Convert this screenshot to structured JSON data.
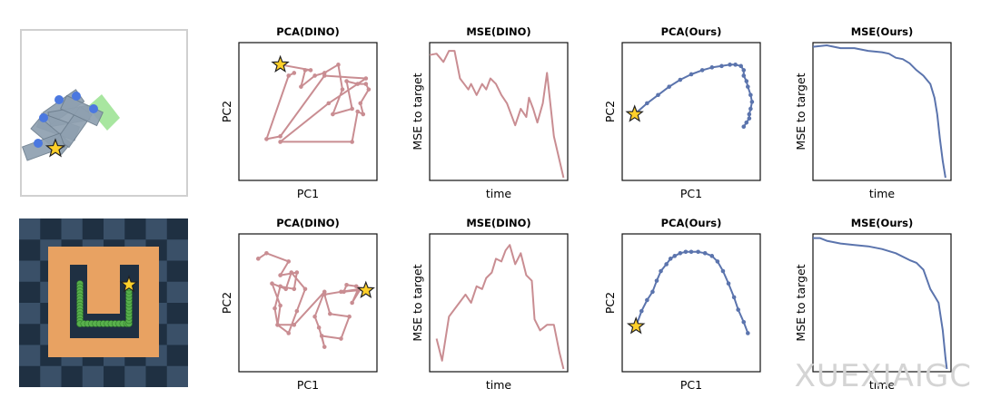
{
  "colors": {
    "dino": "#c98d92",
    "ours": "#5b74ad",
    "star_fill": "#ffd02a",
    "star_stroke": "#222222",
    "env_border": "#d0d0d0",
    "push_block": "#8fa0b0",
    "push_goal": "#a8e6a0",
    "push_agent": "#4b78e0",
    "maze_dark": "#1f3042",
    "maze_light": "#3a5068",
    "maze_orange": "#e8a262",
    "snake_green": "#58b04c"
  },
  "watermark": "XUEXIAIGC",
  "chart_data": [
    {
      "row": 0,
      "type": "line",
      "title": "PCA(DINO)",
      "xlabel": "PC1",
      "ylabel": "PC2",
      "series": "dino",
      "markers": true,
      "star": true,
      "x": [
        0.3,
        0.52,
        0.48,
        0.45,
        0.55,
        0.62,
        0.72,
        0.75,
        0.68,
        0.82,
        0.78,
        0.86,
        0.92,
        0.94,
        0.88,
        0.9,
        0.86,
        0.82,
        0.3,
        0.65,
        0.92,
        0.62,
        0.3,
        0.2,
        0.36,
        0.4
      ],
      "y": [
        0.84,
        0.8,
        0.8,
        0.68,
        0.76,
        0.78,
        0.84,
        0.66,
        0.48,
        0.52,
        0.72,
        0.7,
        0.7,
        0.66,
        0.56,
        0.48,
        0.5,
        0.28,
        0.28,
        0.56,
        0.74,
        0.76,
        0.32,
        0.3,
        0.76,
        0.78
      ],
      "xlim": [
        0,
        1
      ],
      "ylim": [
        0,
        1
      ]
    },
    {
      "row": 0,
      "type": "line",
      "title": "MSE(DINO)",
      "xlabel": "time",
      "ylabel": "MSE to target",
      "series": "dino",
      "markers": false,
      "x": [
        0.0,
        0.05,
        0.1,
        0.14,
        0.18,
        0.22,
        0.28,
        0.3,
        0.34,
        0.38,
        0.41,
        0.44,
        0.48,
        0.52,
        0.56,
        0.62,
        0.66,
        0.7,
        0.72,
        0.75,
        0.78,
        0.82,
        0.85,
        0.9,
        0.97
      ],
      "y": [
        0.91,
        0.92,
        0.86,
        0.94,
        0.94,
        0.74,
        0.66,
        0.7,
        0.62,
        0.7,
        0.66,
        0.74,
        0.7,
        0.62,
        0.56,
        0.4,
        0.52,
        0.46,
        0.6,
        0.52,
        0.42,
        0.56,
        0.78,
        0.32,
        0.02
      ],
      "xlim": [
        0,
        1
      ],
      "ylim": [
        0,
        1
      ]
    },
    {
      "row": 0,
      "type": "line",
      "title": "PCA(Ours)",
      "xlabel": "PC1",
      "ylabel": "PC2",
      "series": "ours",
      "markers": true,
      "star": true,
      "x": [
        0.09,
        0.18,
        0.26,
        0.34,
        0.42,
        0.5,
        0.58,
        0.65,
        0.72,
        0.78,
        0.82,
        0.86,
        0.88,
        0.88,
        0.9,
        0.91,
        0.93,
        0.94,
        0.93,
        0.92,
        0.92,
        0.9,
        0.88
      ],
      "y": [
        0.48,
        0.56,
        0.62,
        0.68,
        0.73,
        0.77,
        0.8,
        0.82,
        0.83,
        0.84,
        0.84,
        0.83,
        0.8,
        0.76,
        0.72,
        0.68,
        0.62,
        0.57,
        0.52,
        0.48,
        0.45,
        0.42,
        0.39
      ],
      "xlim": [
        0,
        1
      ],
      "ylim": [
        0,
        1
      ]
    },
    {
      "row": 0,
      "type": "line",
      "title": "MSE(Ours)",
      "xlabel": "time",
      "ylabel": "MSE to target",
      "series": "ours",
      "markers": false,
      "x": [
        0.0,
        0.1,
        0.2,
        0.3,
        0.4,
        0.5,
        0.55,
        0.6,
        0.65,
        0.7,
        0.75,
        0.8,
        0.85,
        0.88,
        0.9,
        0.92,
        0.94,
        0.96
      ],
      "y": [
        0.97,
        0.98,
        0.96,
        0.96,
        0.94,
        0.93,
        0.92,
        0.89,
        0.88,
        0.85,
        0.8,
        0.76,
        0.7,
        0.6,
        0.48,
        0.3,
        0.14,
        0.02
      ],
      "xlim": [
        0,
        1
      ],
      "ylim": [
        0,
        1
      ]
    },
    {
      "row": 1,
      "type": "line",
      "title": "PCA(DINO)",
      "xlabel": "PC1",
      "ylabel": "PC2",
      "series": "dino",
      "markers": true,
      "star": true,
      "x": [
        0.92,
        0.85,
        0.78,
        0.76,
        0.86,
        0.82,
        0.88,
        0.74,
        0.62,
        0.66,
        0.8,
        0.74,
        0.6,
        0.62,
        0.58,
        0.55,
        0.62,
        0.4,
        0.28,
        0.3,
        0.24,
        0.34,
        0.38,
        0.48,
        0.42,
        0.36,
        0.28,
        0.26,
        0.3,
        0.4,
        0.42,
        0.3,
        0.36,
        0.2,
        0.14
      ],
      "y": [
        0.59,
        0.62,
        0.63,
        0.58,
        0.59,
        0.5,
        0.6,
        0.58,
        0.56,
        0.42,
        0.4,
        0.24,
        0.26,
        0.18,
        0.32,
        0.4,
        0.58,
        0.34,
        0.34,
        0.48,
        0.64,
        0.6,
        0.72,
        0.6,
        0.44,
        0.28,
        0.34,
        0.46,
        0.62,
        0.6,
        0.72,
        0.7,
        0.8,
        0.86,
        0.82
      ],
      "xlim": [
        0,
        1
      ],
      "ylim": [
        0,
        1
      ]
    },
    {
      "row": 1,
      "type": "line",
      "title": "MSE(DINO)",
      "xlabel": "time",
      "ylabel": "MSE to target",
      "series": "dino",
      "markers": false,
      "x": [
        0.05,
        0.09,
        0.14,
        0.2,
        0.26,
        0.3,
        0.34,
        0.38,
        0.41,
        0.45,
        0.48,
        0.52,
        0.55,
        0.58,
        0.62,
        0.66,
        0.7,
        0.74,
        0.76,
        0.8,
        0.85,
        0.9,
        0.94,
        0.97
      ],
      "y": [
        0.24,
        0.08,
        0.4,
        0.48,
        0.56,
        0.5,
        0.62,
        0.6,
        0.68,
        0.72,
        0.82,
        0.8,
        0.88,
        0.92,
        0.78,
        0.86,
        0.7,
        0.66,
        0.38,
        0.3,
        0.34,
        0.34,
        0.14,
        0.02
      ],
      "xlim": [
        0,
        1
      ],
      "ylim": [
        0,
        1
      ]
    },
    {
      "row": 1,
      "type": "line",
      "title": "PCA(Ours)",
      "xlabel": "PC1",
      "ylabel": "PC2",
      "series": "ours",
      "markers": true,
      "star": true,
      "x": [
        0.1,
        0.14,
        0.18,
        0.22,
        0.25,
        0.28,
        0.32,
        0.35,
        0.38,
        0.42,
        0.46,
        0.5,
        0.55,
        0.6,
        0.65,
        0.69,
        0.73,
        0.77,
        0.81,
        0.84,
        0.88,
        0.91
      ],
      "y": [
        0.33,
        0.44,
        0.52,
        0.58,
        0.66,
        0.73,
        0.78,
        0.82,
        0.84,
        0.86,
        0.87,
        0.87,
        0.87,
        0.86,
        0.84,
        0.8,
        0.73,
        0.64,
        0.54,
        0.45,
        0.36,
        0.28
      ],
      "xlim": [
        0,
        1
      ],
      "ylim": [
        0,
        1
      ]
    },
    {
      "row": 1,
      "type": "line",
      "title": "MSE(Ours)",
      "xlabel": "time",
      "ylabel": "MSE to target",
      "series": "ours",
      "markers": false,
      "x": [
        0.0,
        0.05,
        0.1,
        0.2,
        0.3,
        0.4,
        0.5,
        0.6,
        0.7,
        0.75,
        0.8,
        0.85,
        0.88,
        0.91,
        0.94,
        0.96,
        0.97
      ],
      "y": [
        0.97,
        0.97,
        0.95,
        0.93,
        0.92,
        0.91,
        0.89,
        0.86,
        0.81,
        0.79,
        0.74,
        0.6,
        0.55,
        0.5,
        0.3,
        0.1,
        0.02
      ],
      "xlim": [
        0,
        1
      ],
      "ylim": [
        0,
        1
      ]
    }
  ]
}
